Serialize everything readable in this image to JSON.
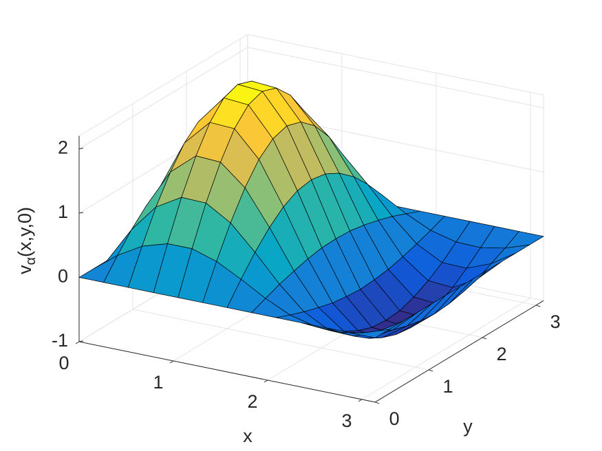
{
  "chart_data": {
    "type": "surface",
    "x": [
      0,
      0.26,
      0.52,
      0.79,
      1.05,
      1.31,
      1.57,
      1.83,
      2.09,
      2.36,
      2.62,
      2.88,
      3.14
    ],
    "y": [
      0,
      0.26,
      0.52,
      0.79,
      1.05,
      1.31,
      1.57,
      1.83,
      2.09,
      2.36,
      2.62,
      2.88,
      3.14
    ],
    "z": [
      [
        0,
        0,
        0,
        0,
        0,
        0,
        0,
        0,
        0,
        0,
        0,
        0,
        0
      ],
      [
        0,
        0.29,
        0.56,
        0.79,
        0.96,
        1.07,
        1.11,
        1.07,
        0.96,
        0.79,
        0.56,
        0.29,
        0
      ],
      [
        0,
        0.51,
        0.99,
        1.4,
        1.72,
        1.92,
        1.99,
        1.92,
        1.72,
        1.4,
        0.99,
        0.51,
        0
      ],
      [
        0,
        0.63,
        1.22,
        1.73,
        2.12,
        2.37,
        2.45,
        2.37,
        2.12,
        1.73,
        1.22,
        0.63,
        0
      ],
      [
        0,
        0.63,
        1.21,
        1.71,
        2.1,
        2.34,
        2.42,
        2.34,
        2.1,
        1.71,
        1.21,
        0.63,
        0
      ],
      [
        0,
        0.51,
        0.98,
        1.39,
        1.7,
        1.89,
        1.96,
        1.89,
        1.7,
        1.39,
        0.98,
        0.51,
        0
      ],
      [
        0,
        0.31,
        0.6,
        0.85,
        1.04,
        1.16,
        1.2,
        1.16,
        1.04,
        0.85,
        0.6,
        0.31,
        0
      ],
      [
        0,
        0.09,
        0.18,
        0.25,
        0.31,
        0.35,
        0.36,
        0.35,
        0.31,
        0.25,
        0.18,
        0.09,
        0
      ],
      [
        0,
        -0.09,
        -0.17,
        -0.24,
        -0.3,
        -0.33,
        -0.35,
        -0.33,
        -0.3,
        -0.24,
        -0.17,
        -0.09,
        0
      ],
      [
        0,
        -0.19,
        -0.38,
        -0.53,
        -0.65,
        -0.73,
        -0.75,
        -0.73,
        -0.65,
        -0.53,
        -0.38,
        -0.19,
        0
      ],
      [
        0,
        -0.2,
        -0.39,
        -0.56,
        -0.68,
        -0.76,
        -0.79,
        -0.76,
        -0.68,
        -0.56,
        -0.39,
        -0.2,
        0
      ],
      [
        0,
        -0.13,
        -0.24,
        -0.35,
        -0.42,
        -0.47,
        -0.49,
        -0.47,
        -0.42,
        -0.35,
        -0.24,
        -0.13,
        0
      ],
      [
        0,
        0,
        0,
        0,
        0,
        0,
        0,
        0,
        0,
        0,
        0,
        0,
        0
      ]
    ],
    "xlim": [
      0,
      3.14
    ],
    "ylim": [
      0,
      3.14
    ],
    "zlim": [
      -1,
      2.2
    ],
    "xticks": [
      0,
      1,
      2,
      3
    ],
    "yticks": [
      0,
      1,
      2,
      3
    ],
    "zticks": [
      -1,
      0,
      1,
      2
    ],
    "xlabel": "x",
    "ylabel": "y",
    "zlabel": {
      "main": "v",
      "sub": "α",
      "rest": "(x,y,0)"
    },
    "grid": true,
    "edge_color": "#000000",
    "colormap": [
      "#352a87",
      "#0f5cdd",
      "#1481d6",
      "#06a4ca",
      "#2eb7a4",
      "#87bf77",
      "#d1bb59",
      "#fec832",
      "#f9fb0e"
    ]
  }
}
